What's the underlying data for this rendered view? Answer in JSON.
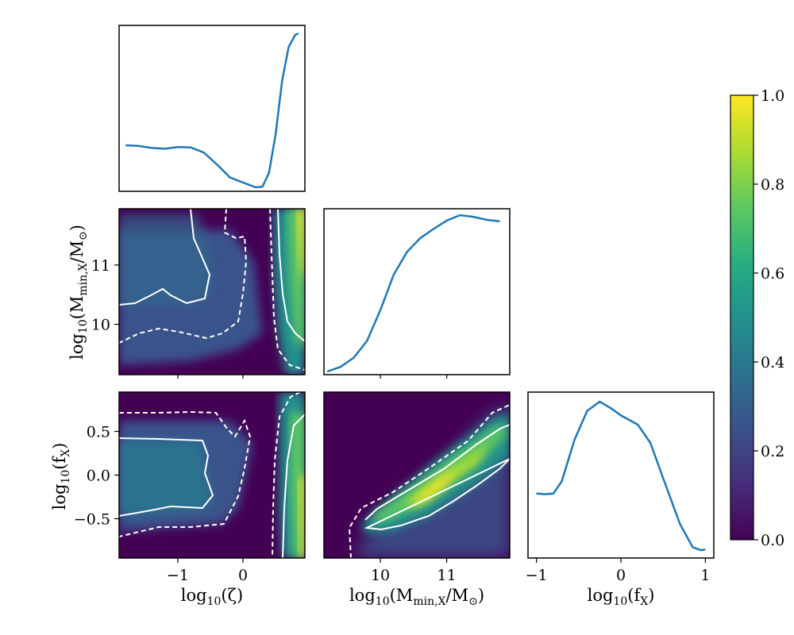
{
  "chart_data": {
    "type": "corner",
    "parameters": [
      {
        "key": "zeta",
        "base": "log",
        "sub": "10",
        "arg": "(ζ)",
        "range": [
          -1.9,
          0.95
        ],
        "ticks": [
          -1,
          0
        ],
        "tick_labels": [
          "−1",
          "0"
        ]
      },
      {
        "key": "mmin",
        "base": "log",
        "sub": "10",
        "arg_pre": "(M",
        "arg_sub": "min,X",
        "arg_post": "/M",
        "arg_sub2": "⊙",
        "arg_end": ")",
        "range": [
          9.15,
          11.95
        ],
        "ticks": [
          10,
          11
        ],
        "tick_labels": [
          "10",
          "11"
        ]
      },
      {
        "key": "fx",
        "base": "log",
        "sub": "10",
        "arg_pre": "(f",
        "arg_sub": "X",
        "arg_end": ")",
        "range": [
          -0.95,
          0.95
        ],
        "ticks": [
          -0.5,
          0.0,
          0.5
        ],
        "tick_labels": [
          "−0.5",
          "0.0",
          "0.5"
        ],
        "ticks_diag": [
          -1,
          0,
          1
        ],
        "tick_labels_diag": [
          "−1",
          "0",
          "1"
        ]
      }
    ],
    "marginals": {
      "zeta": {
        "x": [
          -1.8,
          -1.6,
          -1.4,
          -1.2,
          -1.0,
          -0.8,
          -0.6,
          -0.4,
          -0.2,
          0.0,
          0.1,
          0.2,
          0.3,
          0.4,
          0.5,
          0.6,
          0.7,
          0.8,
          0.85
        ],
        "y": [
          0.28,
          0.275,
          0.262,
          0.257,
          0.268,
          0.266,
          0.232,
          0.155,
          0.07,
          0.037,
          0.02,
          0.005,
          0.01,
          0.1,
          0.35,
          0.7,
          0.92,
          1.0,
          1.01
        ]
      },
      "mmin": {
        "x": [
          9.2,
          9.4,
          9.6,
          9.8,
          10.0,
          10.2,
          10.4,
          10.6,
          10.8,
          11.0,
          11.2,
          11.4,
          11.6,
          11.8
        ],
        "y": [
          0.0,
          0.03,
          0.09,
          0.2,
          0.4,
          0.63,
          0.78,
          0.87,
          0.93,
          0.985,
          1.02,
          1.01,
          0.99,
          0.98
        ]
      },
      "fx": {
        "x": [
          -1.0,
          -0.9,
          -0.8,
          -0.7,
          -0.55,
          -0.4,
          -0.25,
          -0.1,
          0.0,
          0.2,
          0.35,
          0.5,
          0.7,
          0.85,
          0.95,
          1.0
        ],
        "y": [
          0.4,
          0.396,
          0.4,
          0.48,
          0.75,
          0.94,
          1.0,
          0.95,
          0.91,
          0.85,
          0.73,
          0.5,
          0.2,
          0.05,
          0.03,
          0.035
        ]
      }
    },
    "joint_panels": [
      {
        "x": "zeta",
        "y": "mmin",
        "contours": [
          "68%",
          "95%"
        ]
      },
      {
        "x": "zeta",
        "y": "fx",
        "contours": [
          "68%",
          "95%"
        ]
      },
      {
        "x": "mmin",
        "y": "fx",
        "contours": [
          "68%",
          "95%"
        ]
      }
    ],
    "contour_styles": {
      "68%": "solid",
      "95%": "dashed"
    },
    "colorbar": {
      "min": 0.0,
      "max": 1.0,
      "ticks": [
        0.0,
        0.2,
        0.4,
        0.6,
        0.8,
        1.0
      ],
      "tick_labels": [
        "0.0",
        "0.2",
        "0.4",
        "0.6",
        "0.8",
        "1.0"
      ],
      "colormap": "viridis"
    },
    "line_color": "#1f77b4"
  }
}
